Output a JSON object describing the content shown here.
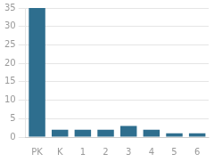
{
  "chart_data": {
    "type": "bar",
    "categories": [
      "PK",
      "K",
      "1",
      "2",
      "3",
      "4",
      "5",
      "6"
    ],
    "values": [
      35,
      2,
      2,
      2,
      3,
      2,
      1,
      1
    ],
    "color": "#2e6e8e",
    "ylim": [
      0,
      35
    ],
    "yticks": [
      0,
      5,
      10,
      15,
      20,
      25,
      30,
      35
    ],
    "grid": true
  }
}
